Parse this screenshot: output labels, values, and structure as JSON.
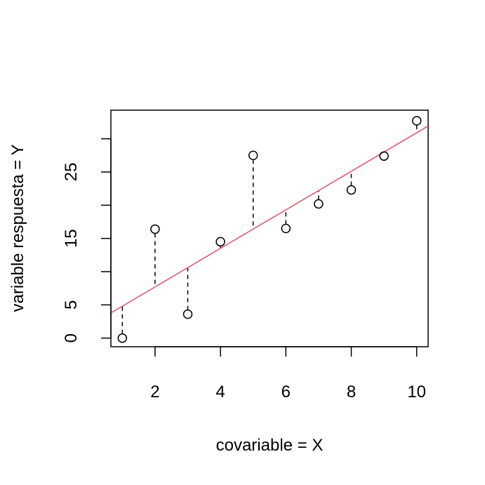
{
  "chart_data": {
    "type": "scatter",
    "xlabel": "covariable = X",
    "ylabel": "variable respuesta = Y",
    "xlim": [
      0.65,
      10.35
    ],
    "ylim": [
      -1.3,
      34.3
    ],
    "x_ticks": [
      2,
      4,
      6,
      8,
      10
    ],
    "x_tick_labels": [
      "2",
      "4",
      "6",
      "8",
      "10"
    ],
    "y_ticks": [
      0,
      5,
      10,
      15,
      20,
      25,
      30
    ],
    "y_tick_labels": [
      "0",
      "5",
      "",
      "15",
      "",
      "25",
      ""
    ],
    "grid": false,
    "points": {
      "x": [
        1,
        2,
        3,
        4,
        5,
        6,
        7,
        8,
        9,
        10
      ],
      "y": [
        0,
        16.4,
        3.6,
        14.5,
        27.5,
        16.5,
        20.2,
        22.3,
        27.4,
        32.7
      ]
    },
    "fit_line": {
      "intercept": 1.9,
      "slope": 2.9,
      "color": "#DF536B"
    },
    "residual_segments": {
      "style": "dashed",
      "color": "#000000"
    },
    "point_color": "#000000"
  }
}
